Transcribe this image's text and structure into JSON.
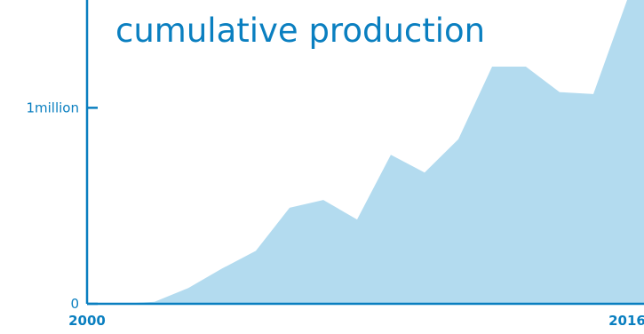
{
  "chart_data": {
    "type": "area",
    "title": "cumulative production",
    "xlabel": "",
    "ylabel": "",
    "x": [
      2000,
      2001,
      2002,
      2003,
      2004,
      2005,
      2006,
      2007,
      2008,
      2009,
      2010,
      2011,
      2012,
      2013,
      2014,
      2015,
      2016,
      2016.5
    ],
    "values": [
      0,
      0,
      0.01,
      0.08,
      0.18,
      0.27,
      0.49,
      0.53,
      0.43,
      0.76,
      0.67,
      0.84,
      1.21,
      1.21,
      1.08,
      1.07,
      1.55,
      1.75
    ],
    "xlim": [
      2000,
      2016.5
    ],
    "ylim": [
      0,
      1.55
    ],
    "x_ticks": [
      {
        "value": 2000,
        "label": "2000"
      },
      {
        "value": 2016,
        "label": "2016"
      }
    ],
    "y_ticks": [
      {
        "value": 0,
        "label": "0"
      },
      {
        "value": 1,
        "label": "1million"
      }
    ],
    "grid": false,
    "colors": {
      "fill": "#b3dbef",
      "axis": "#0a7fc0",
      "text": "#0a7fc0"
    }
  }
}
